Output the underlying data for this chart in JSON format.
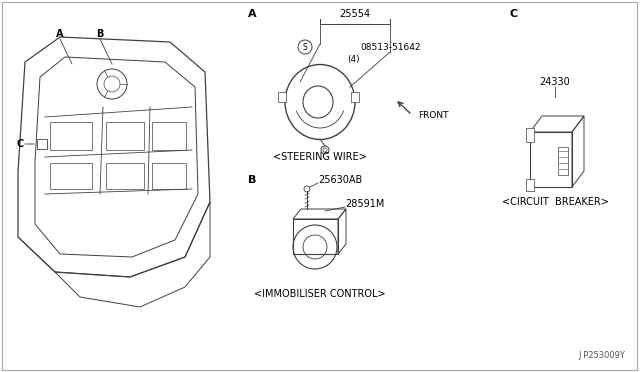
{
  "bg_color": "#ffffff",
  "line_color": "#404040",
  "text_color": "#000000",
  "fig_width": 6.4,
  "fig_height": 3.72,
  "label_A": "A",
  "label_B": "B",
  "label_C": "C",
  "part_A_number": "25554",
  "part_A_sub_number": "08513-51642",
  "part_A_sub_qty": "(4)",
  "part_A_name": "<STEERING WIRE>",
  "part_B_number": "25630AB",
  "part_B_sub_number": "28591M",
  "part_B_name": "<IMMOBILISER CONTROL>",
  "part_C_number": "24330",
  "part_C_name": "<CIRCUIT  BREAKER>",
  "front_label": "FRONT",
  "diagram_code": "J P253009Y"
}
